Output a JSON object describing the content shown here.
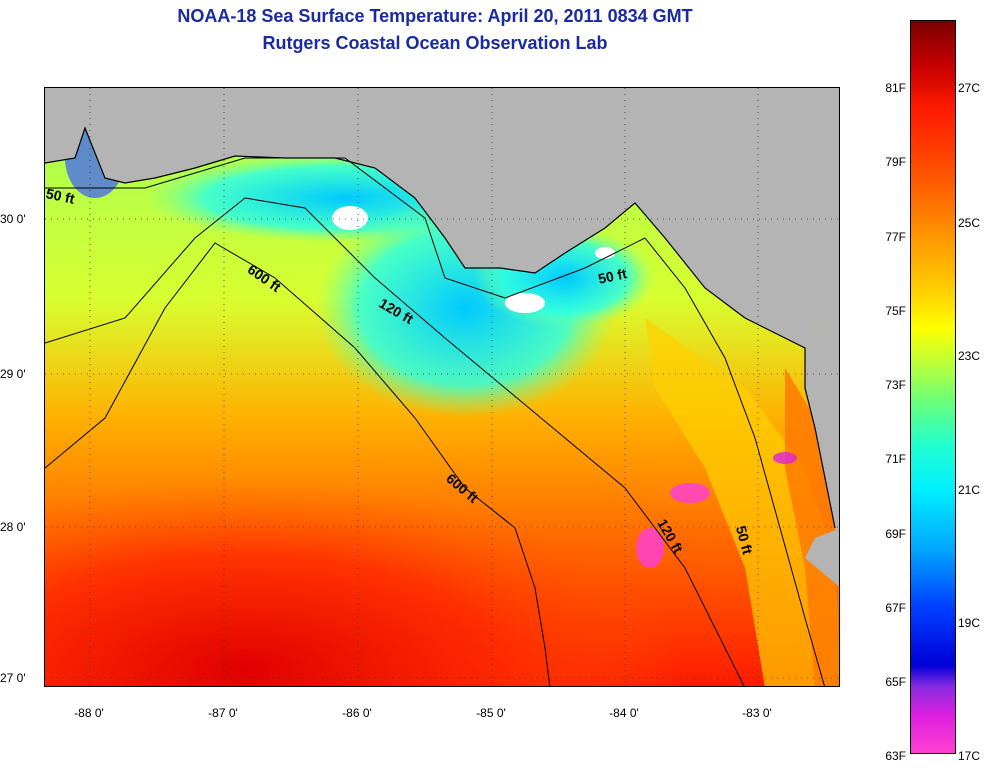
{
  "title": "NOAA-18 Sea Surface Temperature:  April 20, 2011 0834 GMT",
  "subtitle": "Rutgers Coastal Ocean Observation Lab",
  "axes": {
    "lat_labels": [
      "30 0'",
      "29 0'",
      "28 0'",
      "27 0'"
    ],
    "lon_labels": [
      "-88 0'",
      "-87 0'",
      "-86 0'",
      "-85 0'",
      "-84 0'",
      "-83 0'"
    ]
  },
  "depth_contours": [
    "50 ft",
    "600 ft",
    "120 ft",
    "50 ft",
    "600 ft",
    "120 ft",
    "50 ft"
  ],
  "colorbar": {
    "fahrenheit": [
      "81F",
      "79F",
      "77F",
      "75F",
      "73F",
      "71F",
      "69F",
      "67F",
      "65F",
      "63F"
    ],
    "celsius": [
      "27C",
      "25C",
      "23C",
      "21C",
      "19C",
      "17C"
    ]
  },
  "colors": {
    "land": "#b4b4b4",
    "title": "#1a2aa0",
    "warm": "#ff2a00",
    "cool": "#00e6ff"
  }
}
